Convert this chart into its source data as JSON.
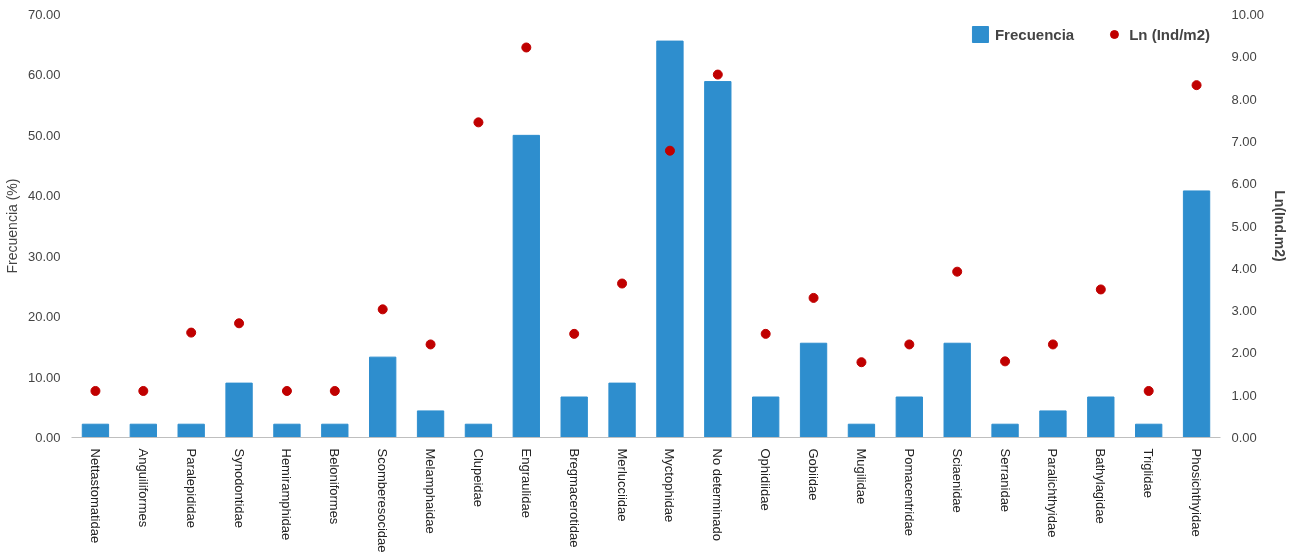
{
  "chart_data": {
    "type": "bar",
    "ylabel": "Frecuencia (%)",
    "y2label": "Ln(Ind.m2)",
    "categories": [
      "Nettastomatidae",
      "Anguiliformes",
      "Paralepididae",
      "Synodontidae",
      "Hemiramphidae",
      "Beloniformes",
      "Scomberesocidae",
      "Melamphaidae",
      "Clupeidae",
      "Engraulidae",
      "Bregmacerotidae",
      "Merlucciidae",
      "Myctophidae",
      "No determinado",
      "Ophidiidae",
      "Gobiidae",
      "Mugilidae",
      "Pomacentridae",
      "Sciaenidae",
      "Serranidae",
      "Paralichthyidae",
      "Bathylagidae",
      "Triglidae",
      "Phosichthyidae"
    ],
    "series": [
      {
        "name": "Frecuencia",
        "color": "#2e8ece",
        "values": [
          2.2,
          2.2,
          2.2,
          9.0,
          2.2,
          2.2,
          13.3,
          4.4,
          2.2,
          50.0,
          6.7,
          9.0,
          65.6,
          58.9,
          6.7,
          15.6,
          2.2,
          6.7,
          15.6,
          2.2,
          4.4,
          6.7,
          2.2,
          40.8
        ]
      },
      {
        "name": "Ln (Ind/m2)",
        "type": "scatter",
        "axis": "y2",
        "marker": "circle",
        "color": "#c00000",
        "values": [
          1.1,
          1.1,
          2.48,
          2.7,
          1.1,
          1.1,
          3.03,
          2.2,
          7.45,
          9.22,
          2.45,
          3.64,
          6.78,
          8.58,
          2.45,
          3.3,
          1.78,
          2.2,
          3.92,
          1.8,
          2.2,
          3.5,
          1.1,
          8.33
        ]
      }
    ],
    "ylim": [
      0,
      70
    ],
    "yticks": [
      {
        "value": 0,
        "label": "0.00"
      },
      {
        "value": 10,
        "label": "10.00"
      },
      {
        "value": 20,
        "label": "20.00"
      },
      {
        "value": 30,
        "label": "30.00"
      },
      {
        "value": 40,
        "label": "40.00"
      },
      {
        "value": 50,
        "label": "50.00"
      },
      {
        "value": 60,
        "label": "60.00"
      },
      {
        "value": 70,
        "label": "70.00"
      }
    ],
    "y2lim": [
      0,
      10
    ],
    "y2ticks": [
      {
        "value": 0,
        "label": "0.00"
      },
      {
        "value": 1,
        "label": "1.00"
      },
      {
        "value": 2,
        "label": "2.00"
      },
      {
        "value": 3,
        "label": "3.00"
      },
      {
        "value": 4,
        "label": "4.00"
      },
      {
        "value": 5,
        "label": "5.00"
      },
      {
        "value": 6,
        "label": "6.00"
      },
      {
        "value": 7,
        "label": "7.00"
      },
      {
        "value": 8,
        "label": "8.00"
      },
      {
        "value": 9,
        "label": "9.00"
      },
      {
        "value": 10,
        "label": "10.00"
      }
    ],
    "grid": false,
    "legend": "top right"
  }
}
